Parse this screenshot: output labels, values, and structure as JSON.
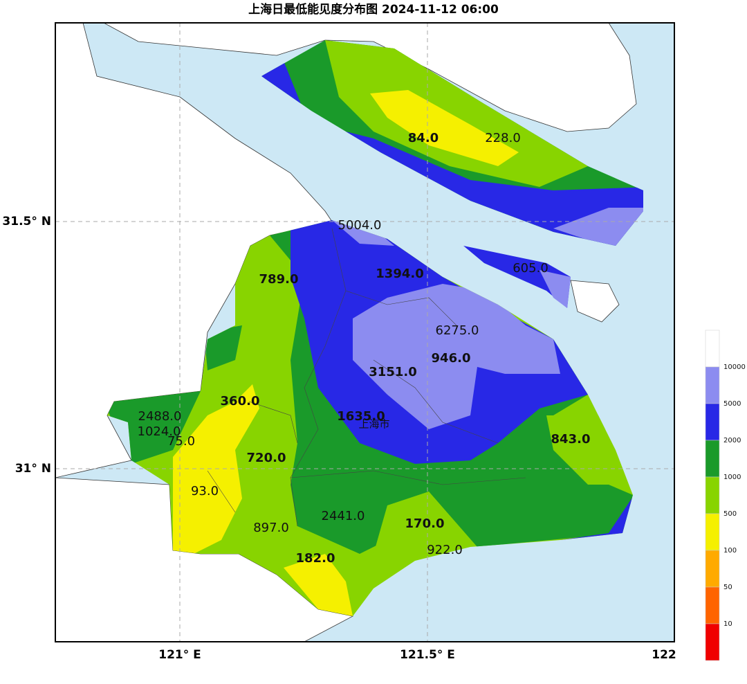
{
  "title": "上海日最低能见度分布图 2024-11-12 06:00",
  "axes": {
    "x_labels": [
      "121° E",
      "121.5° E",
      "122"
    ],
    "y_labels": [
      "31.5° N",
      "31° N"
    ]
  },
  "city_label": "上海市",
  "stations": [
    {
      "label": "84.0",
      "bold": true
    },
    {
      "label": "228.0",
      "bold": false
    },
    {
      "label": "5004.0",
      "bold": false
    },
    {
      "label": "1394.0",
      "bold": true
    },
    {
      "label": "605.0",
      "bold": false
    },
    {
      "label": "789.0",
      "bold": true
    },
    {
      "label": "6275.0",
      "bold": false
    },
    {
      "label": "946.0",
      "bold": true
    },
    {
      "label": "3151.0",
      "bold": true
    },
    {
      "label": "360.0",
      "bold": true
    },
    {
      "label": "1635.0",
      "bold": true
    },
    {
      "label": "2488.0",
      "bold": false
    },
    {
      "label": "1024.0",
      "bold": false
    },
    {
      "label": "75.0",
      "bold": false
    },
    {
      "label": "843.0",
      "bold": true
    },
    {
      "label": "720.0",
      "bold": true
    },
    {
      "label": "93.0",
      "bold": false
    },
    {
      "label": "2441.0",
      "bold": false
    },
    {
      "label": "170.0",
      "bold": true
    },
    {
      "label": "897.0",
      "bold": false
    },
    {
      "label": "922.0",
      "bold": false
    },
    {
      "label": "182.0",
      "bold": true
    }
  ],
  "legend": {
    "labels": [
      "10000",
      "5000",
      "2000",
      "1000",
      "500",
      "100",
      "50",
      "10"
    ],
    "colors": [
      "#ffffff",
      "#8c8cf0",
      "#2828e6",
      "#1a9a2a",
      "#88d400",
      "#f5f000",
      "#ffaa00",
      "#ff6400",
      "#f00000"
    ]
  }
}
